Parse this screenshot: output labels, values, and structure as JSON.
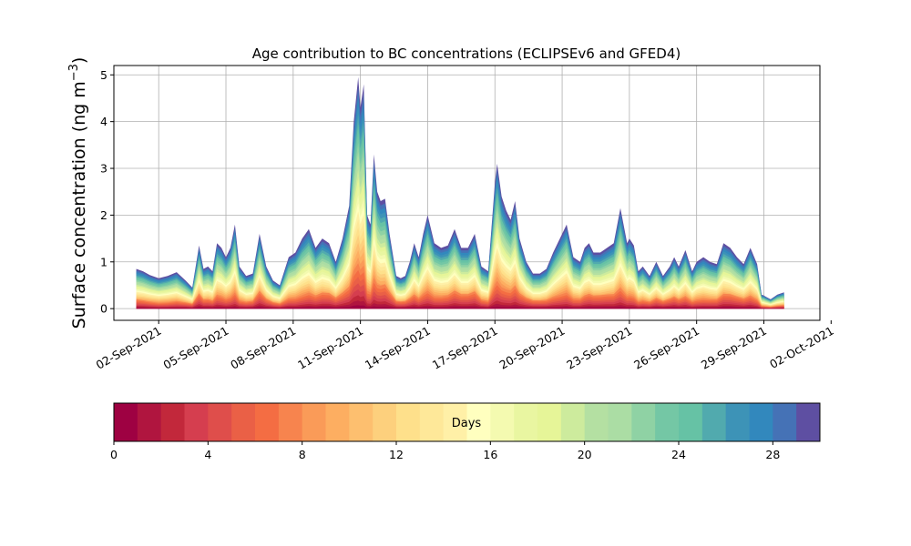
{
  "chart_data": {
    "type": "area",
    "stacked": true,
    "title": "Age contribution to BC concentrations (ECLIPSEv6 and GFED4)",
    "xlabel": "",
    "ylabel_main": "Surface concentration (ng m",
    "ylabel_sup": "−3",
    "ylabel_close": ")",
    "ylim": [
      -0.25,
      5.2
    ],
    "yticks": [
      0,
      1,
      2,
      3,
      4,
      5
    ],
    "ytick_labels": [
      "0",
      "1",
      "2",
      "3",
      "4",
      "5"
    ],
    "xlim_day": [
      0.0,
      31.5
    ],
    "x_start_day": 1.0,
    "x_end_day": 29.9,
    "xticks_day": [
      2,
      5,
      8,
      11,
      14,
      17,
      20,
      23,
      26,
      29,
      32
    ],
    "xtick_labels": [
      "02-Sep-2021",
      "05-Sep-2021",
      "08-Sep-2021",
      "11-Sep-2021",
      "14-Sep-2021",
      "17-Sep-2021",
      "20-Sep-2021",
      "23-Sep-2021",
      "26-Sep-2021",
      "29-Sep-2021",
      "02-Oct-2021"
    ],
    "grid": true,
    "age_bins_days": 30,
    "total_series": {
      "day": [
        1.0,
        1.3,
        1.6,
        2.0,
        2.4,
        2.8,
        3.2,
        3.5,
        3.8,
        4.0,
        4.2,
        4.4,
        4.6,
        4.8,
        5.0,
        5.2,
        5.4,
        5.6,
        5.9,
        6.2,
        6.5,
        6.8,
        7.1,
        7.4,
        7.8,
        8.1,
        8.4,
        8.7,
        9.0,
        9.3,
        9.6,
        9.9,
        10.2,
        10.5,
        10.7,
        10.9,
        11.0,
        11.15,
        11.3,
        11.45,
        11.6,
        11.75,
        11.9,
        12.1,
        12.3,
        12.6,
        12.8,
        13.0,
        13.2,
        13.4,
        13.6,
        13.8,
        14.0,
        14.3,
        14.6,
        14.9,
        15.2,
        15.5,
        15.8,
        16.1,
        16.4,
        16.7,
        17.0,
        17.1,
        17.3,
        17.5,
        17.7,
        17.9,
        18.1,
        18.4,
        18.7,
        19.0,
        19.3,
        19.6,
        19.9,
        20.2,
        20.5,
        20.8,
        21.0,
        21.2,
        21.4,
        21.7,
        22.0,
        22.3,
        22.6,
        22.9,
        23.0,
        23.2,
        23.4,
        23.6,
        23.9,
        24.2,
        24.5,
        24.8,
        25.0,
        25.2,
        25.5,
        25.8,
        26.0,
        26.3,
        26.6,
        26.9,
        27.2,
        27.5,
        27.8,
        28.1,
        28.4,
        28.7,
        28.9,
        29.0,
        29.1,
        29.3,
        29.6,
        29.9
      ],
      "value": [
        0.85,
        0.8,
        0.72,
        0.65,
        0.7,
        0.78,
        0.6,
        0.45,
        1.35,
        0.85,
        0.9,
        0.8,
        1.4,
        1.3,
        1.1,
        1.3,
        1.8,
        0.9,
        0.7,
        0.75,
        1.6,
        0.9,
        0.6,
        0.5,
        1.1,
        1.2,
        1.5,
        1.7,
        1.3,
        1.5,
        1.4,
        1.0,
        1.5,
        2.2,
        4.0,
        4.95,
        4.3,
        4.8,
        2.0,
        1.8,
        3.3,
        2.5,
        2.3,
        2.35,
        1.6,
        0.7,
        0.65,
        0.7,
        1.0,
        1.4,
        1.1,
        1.6,
        2.0,
        1.4,
        1.3,
        1.35,
        1.7,
        1.3,
        1.3,
        1.6,
        0.9,
        0.8,
        2.7,
        3.1,
        2.4,
        2.1,
        1.9,
        2.3,
        1.5,
        1.0,
        0.75,
        0.75,
        0.85,
        1.2,
        1.5,
        1.8,
        1.1,
        1.0,
        1.3,
        1.4,
        1.2,
        1.2,
        1.3,
        1.4,
        2.15,
        1.4,
        1.5,
        1.35,
        0.8,
        0.9,
        0.7,
        1.0,
        0.7,
        0.9,
        1.1,
        0.9,
        1.25,
        0.8,
        1.0,
        1.1,
        1.0,
        0.95,
        1.4,
        1.3,
        1.1,
        0.95,
        1.3,
        0.95,
        0.3,
        0.28,
        0.25,
        0.2,
        0.3,
        0.35
      ]
    },
    "colorbar": {
      "label": "Days",
      "min": 0,
      "max": 30,
      "ticks": [
        0,
        4,
        8,
        12,
        16,
        20,
        24,
        28
      ],
      "tick_labels": [
        "0",
        "4",
        "8",
        "12",
        "16",
        "20",
        "24",
        "28"
      ],
      "colormap": "Spectral",
      "colors": [
        "#9e0142",
        "#b0153f",
        "#c2283b",
        "#d53e4f",
        "#df4e4b",
        "#ea6046",
        "#f46d43",
        "#f7844e",
        "#fa9b58",
        "#fdae61",
        "#fdbf6f",
        "#fdd07d",
        "#fee08b",
        "#fee899",
        "#fff0a7",
        "#ffffbf",
        "#f4fab0",
        "#e9f6a1",
        "#e6f598",
        "#cdeb9d",
        "#b4e0a2",
        "#abdda4",
        "#8fd2a4",
        "#74c7a5",
        "#66c2a5",
        "#51aaae",
        "#3d93b7",
        "#3288bd",
        "#4572b6",
        "#5e4fa2"
      ]
    }
  }
}
